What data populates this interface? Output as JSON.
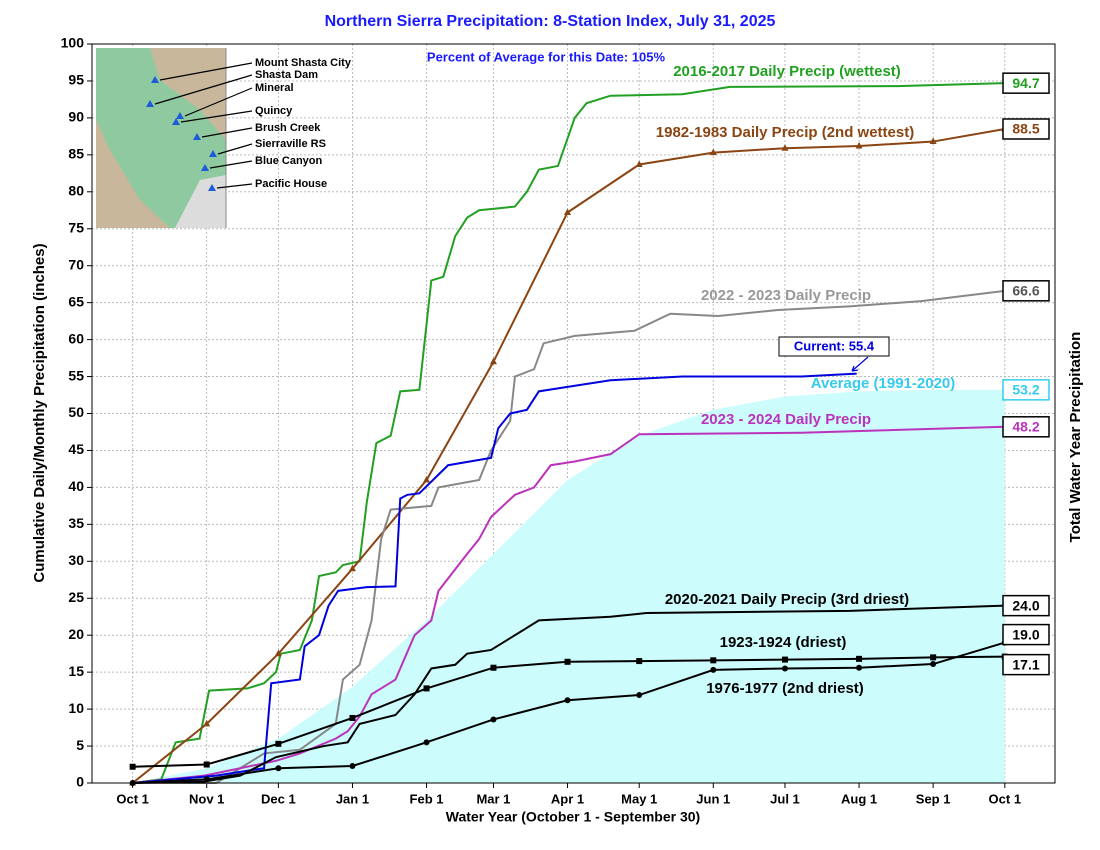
{
  "chart_data": {
    "type": "line",
    "title": "Northern Sierra Precipitation: 8-Station Index, July 31, 2025",
    "subtitle": "Percent of Average for this Date: 105%",
    "x_label": "Water Year (October 1 - September 30)",
    "y_label": "Cumulative Daily/Monthly Precipitation (inches)",
    "y2_label": "Total Water Year Precipitation",
    "current_label": "Current: 55.4",
    "xlim": [
      -17,
      386
    ],
    "xticks": [
      {
        "value": 0,
        "label": "Oct 1"
      },
      {
        "value": 31,
        "label": "Nov 1"
      },
      {
        "value": 61,
        "label": "Dec 1"
      },
      {
        "value": 92,
        "label": "Jan 1"
      },
      {
        "value": 123,
        "label": "Feb 1"
      },
      {
        "value": 151,
        "label": "Mar 1"
      },
      {
        "value": 182,
        "label": "Apr 1"
      },
      {
        "value": 212,
        "label": "May 1"
      },
      {
        "value": 243,
        "label": "Jun 1"
      },
      {
        "value": 273,
        "label": "Jul 1"
      },
      {
        "value": 304,
        "label": "Aug 1"
      },
      {
        "value": 335,
        "label": "Sep 1"
      },
      {
        "value": 365,
        "label": "Oct 1"
      }
    ],
    "ylim": [
      0,
      100
    ],
    "yticks": [
      0,
      5,
      10,
      15,
      20,
      25,
      30,
      35,
      40,
      45,
      50,
      55,
      60,
      65,
      70,
      75,
      80,
      85,
      90,
      95,
      100
    ],
    "grid": true,
    "map_stations": [
      "Mount Shasta City",
      "Shasta Dam",
      "Mineral",
      "Quincy",
      "Brush Creek",
      "Sierraville RS",
      "Blue Canyon",
      "Pacific House"
    ],
    "series": [
      {
        "name": "Average (1991-2020)",
        "color": "#33ccee",
        "area": true,
        "label": "53.2",
        "x": [
          0,
          31,
          61,
          92,
          123,
          151,
          182,
          212,
          243,
          273,
          304,
          335,
          365
        ],
        "values": [
          0,
          2,
          6,
          13,
          22,
          31,
          41,
          47,
          50.5,
          52.3,
          53,
          53.2,
          53.2
        ]
      },
      {
        "name": "2016-2017 Daily Precip (wettest)",
        "color": "#22a022",
        "label": "94.7",
        "x": [
          0,
          12,
          18,
          28,
          32,
          48,
          55,
          60,
          62,
          70,
          75,
          78,
          85,
          88,
          95,
          98,
          102,
          108,
          112,
          120,
          125,
          130,
          135,
          140,
          145,
          160,
          165,
          170,
          178,
          185,
          190,
          200,
          230,
          250,
          320,
          365
        ],
        "values": [
          0,
          0.5,
          5.5,
          6,
          12.5,
          12.8,
          13.5,
          15,
          17.5,
          18,
          22,
          28,
          28.5,
          29.5,
          30,
          38,
          46,
          47,
          53,
          53.2,
          68,
          68.5,
          74,
          76.5,
          77.5,
          78,
          80,
          83,
          83.5,
          90,
          92,
          93,
          93.2,
          94.2,
          94.3,
          94.7
        ]
      },
      {
        "name": "1982-1983 Daily Precip (2nd wettest)",
        "color": "#8b4513",
        "marker": "triangle",
        "label": "88.5",
        "x": [
          0,
          31,
          61,
          92,
          123,
          151,
          182,
          212,
          243,
          273,
          304,
          335,
          365
        ],
        "values": [
          0,
          8,
          17.5,
          29,
          41,
          57,
          77.2,
          83.7,
          85.3,
          85.9,
          86.2,
          86.8,
          88.5
        ]
      },
      {
        "name": "2022 - 2023 Daily Precip",
        "color": "#888888",
        "label": "66.6",
        "x": [
          0,
          35,
          45,
          55,
          70,
          85,
          88,
          95,
          100,
          104,
          108,
          125,
          128,
          145,
          150,
          158,
          160,
          168,
          172,
          185,
          210,
          225,
          245,
          270,
          300,
          330,
          365
        ],
        "values": [
          0,
          0,
          2,
          4,
          4.5,
          8,
          14,
          16,
          22,
          33,
          37,
          37.5,
          40,
          41,
          45,
          49,
          55,
          56,
          59.5,
          60.5,
          61.2,
          63.5,
          63.2,
          64,
          64.5,
          65.2,
          66.6
        ]
      },
      {
        "name": "2023 - 2024 Daily Precip",
        "color": "#bb33bb",
        "label": "48.2",
        "x": [
          0,
          30,
          45,
          60,
          70,
          85,
          90,
          95,
          100,
          110,
          118,
          125,
          128,
          140,
          145,
          150,
          160,
          168,
          175,
          185,
          200,
          212,
          280,
          365
        ],
        "values": [
          0,
          1,
          2,
          3,
          4,
          6,
          7,
          9,
          12,
          14,
          20,
          22,
          26,
          31,
          33,
          36,
          39,
          40,
          43,
          43.5,
          44.5,
          47.2,
          47.4,
          48.2
        ]
      },
      {
        "color": "#0000dd",
        "x": [
          0,
          35,
          45,
          55,
          58,
          70,
          72,
          78,
          82,
          86,
          98,
          110,
          112,
          115,
          120,
          132,
          150,
          153,
          158,
          165,
          170,
          180,
          200,
          230,
          280,
          303
        ],
        "values": [
          0,
          1,
          1.5,
          2,
          13.5,
          14,
          18.5,
          20,
          24,
          26,
          26.5,
          26.6,
          38.5,
          39,
          39.2,
          43,
          44,
          48,
          50,
          50.5,
          53,
          53.5,
          54.5,
          55,
          55,
          55.4
        ]
      },
      {
        "name": "2020-2021 Daily Precip (3rd driest)",
        "color": "#000000",
        "label": "24.0",
        "x": [
          0,
          30,
          45,
          60,
          80,
          90,
          95,
          110,
          118,
          125,
          135,
          140,
          150,
          160,
          170,
          200,
          215,
          300,
          365
        ],
        "values": [
          0,
          0.2,
          1,
          3.5,
          5,
          5.5,
          8,
          9.2,
          12,
          15.5,
          16,
          17.5,
          18,
          20,
          22,
          22.5,
          23,
          23.3,
          24.0
        ]
      },
      {
        "name": "1923-1924 (driest)",
        "color": "#000000",
        "marker": "square",
        "label": "17.1",
        "x": [
          0,
          31,
          61,
          92,
          123,
          151,
          182,
          212,
          243,
          273,
          304,
          335,
          365
        ],
        "values": [
          2.2,
          2.5,
          5.3,
          8.8,
          12.8,
          15.6,
          16.4,
          16.5,
          16.6,
          16.7,
          16.8,
          17,
          17.1
        ]
      },
      {
        "name": "1976-1977 (2nd driest)",
        "color": "#000000",
        "marker": "circle",
        "label": "19.0",
        "x": [
          0,
          31,
          61,
          92,
          123,
          151,
          182,
          212,
          243,
          273,
          304,
          335,
          365
        ],
        "values": [
          0,
          0.5,
          2,
          2.3,
          5.5,
          8.6,
          11.2,
          11.9,
          15.3,
          15.5,
          15.6,
          16.1,
          19.0
        ]
      }
    ]
  }
}
